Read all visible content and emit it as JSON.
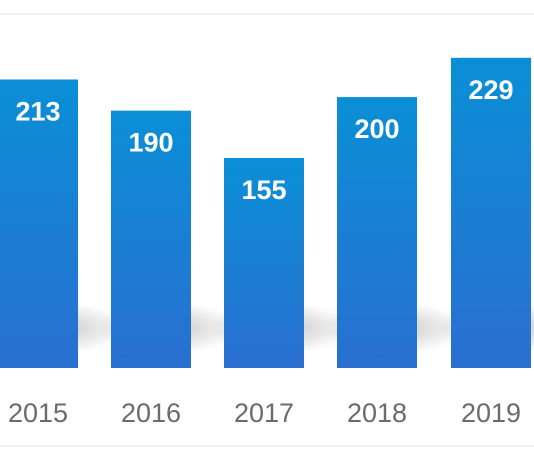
{
  "chart_data": {
    "type": "bar",
    "title": "",
    "xlabel": "",
    "ylabel": "",
    "categories": [
      "2015",
      "2016",
      "2017",
      "2018",
      "2019"
    ],
    "values": [
      213,
      190,
      155,
      200,
      229
    ],
    "data_labels": [
      "213",
      "190",
      "155",
      "200",
      "229"
    ],
    "grid": false,
    "legend": "none",
    "colors": {
      "bar_top": "#0a8fd6",
      "bar_bottom": "#2a6fd0",
      "data_label": "#ffffff",
      "tick_label": "#6b6b6b",
      "frame": "#e6e6e6"
    }
  }
}
